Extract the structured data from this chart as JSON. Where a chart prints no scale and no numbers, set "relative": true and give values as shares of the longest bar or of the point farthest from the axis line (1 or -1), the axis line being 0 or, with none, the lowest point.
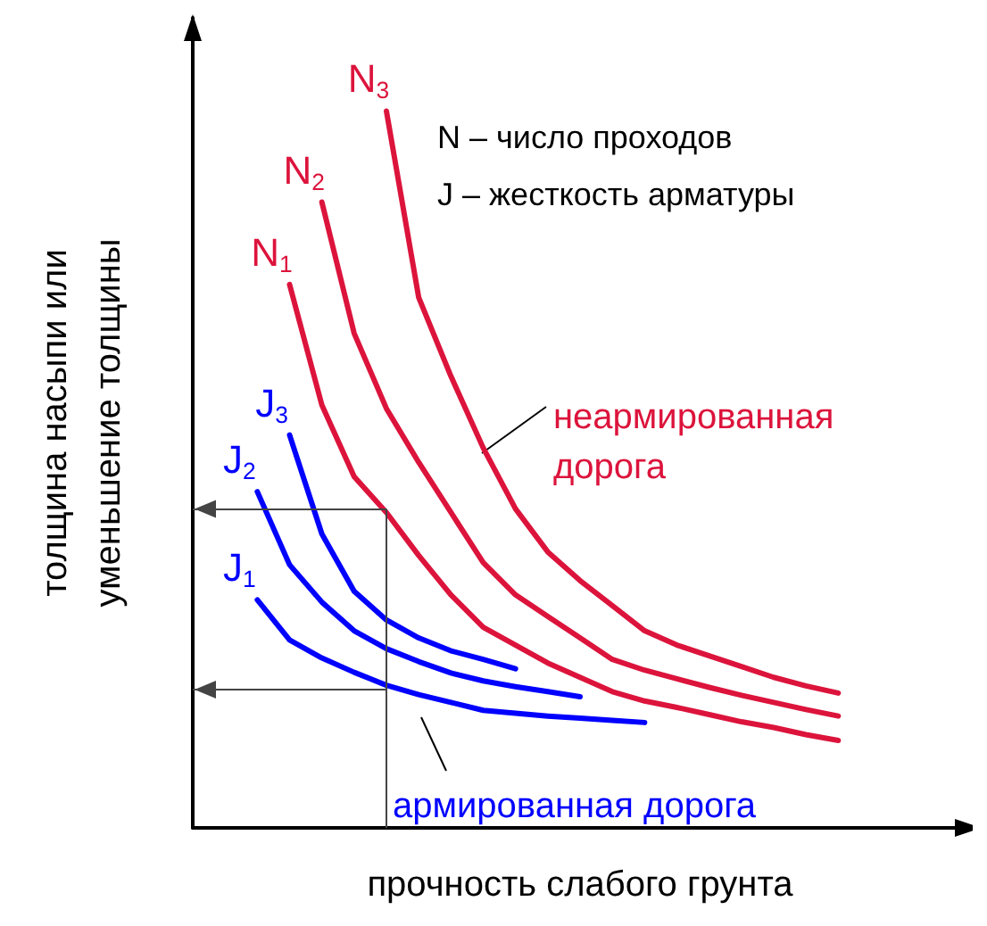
{
  "chart_data": {
    "type": "line",
    "relative": true,
    "xlabel": "прочность слабого грунта",
    "ylabel": "толщина насыпи или\nуменьшение толщины",
    "legend": false,
    "grid": false,
    "marker": "none",
    "line_style": "solid",
    "categories": [
      null,
      null,
      null,
      null,
      null,
      null,
      null,
      null,
      null,
      null,
      null,
      null,
      null,
      null,
      null,
      null,
      null,
      null,
      null,
      null,
      null,
      null,
      null,
      null,
      null
    ],
    "series": [
      {
        "name": "N$_{3}$",
        "color": "#dc143c",
        "values": [
          null,
          null,
          null,
          null,
          null,
          null,
          1.0,
          0.74,
          0.63,
          0.53,
          0.445,
          0.385,
          0.345,
          0.31,
          0.275,
          0.255,
          0.24,
          0.225,
          0.21,
          0.198,
          0.188,
          null,
          null,
          null,
          null
        ]
      },
      {
        "name": "N$_{2}$",
        "color": "#dc143c",
        "values": [
          null,
          null,
          null,
          null,
          0.873,
          0.69,
          0.585,
          0.51,
          0.44,
          0.37,
          0.325,
          0.295,
          0.265,
          0.235,
          0.22,
          0.208,
          0.196,
          0.185,
          0.175,
          0.165,
          0.156,
          null,
          null,
          null,
          null
        ]
      },
      {
        "name": "N$_{1}$",
        "color": "#dc143c",
        "values": [
          null,
          null,
          null,
          0.758,
          0.59,
          0.49,
          0.44,
          0.38,
          0.325,
          0.28,
          0.255,
          0.23,
          0.21,
          0.19,
          0.177,
          0.168,
          0.158,
          0.148,
          0.14,
          0.13,
          0.122,
          null,
          null,
          null,
          null
        ]
      },
      {
        "name": "J$_{3}$",
        "color": "#0000ff",
        "values": [
          null,
          null,
          null,
          0.548,
          0.41,
          0.33,
          0.29,
          0.265,
          0.247,
          0.235,
          0.222,
          null,
          null,
          null,
          null,
          null,
          null,
          null,
          null,
          null,
          null,
          null,
          null,
          null,
          null
        ]
      },
      {
        "name": "J$_{2}$",
        "color": "#0000ff",
        "values": [
          null,
          null,
          0.469,
          0.367,
          0.315,
          0.275,
          0.25,
          0.232,
          0.216,
          0.205,
          0.197,
          0.19,
          0.183,
          null,
          null,
          null,
          null,
          null,
          null,
          null,
          null,
          null,
          null,
          null,
          null
        ]
      },
      {
        "name": "J$_{1}$",
        "color": "#0000ff",
        "values": [
          null,
          null,
          0.318,
          0.262,
          0.237,
          0.217,
          0.199,
          0.186,
          0.175,
          0.164,
          0.16,
          0.156,
          0.153,
          0.15,
          0.147,
          null,
          null,
          null,
          null,
          null,
          null,
          null,
          null,
          null,
          null
        ]
      }
    ],
    "ref_lines": [
      {
        "axis": "y",
        "value": 0.445
      },
      {
        "axis": "y",
        "value": 0.193
      }
    ],
    "annotations": [
      "N – число проходов",
      "J – жесткость арматуры",
      "неармированная\nдорога",
      "армированная дорога"
    ]
  }
}
